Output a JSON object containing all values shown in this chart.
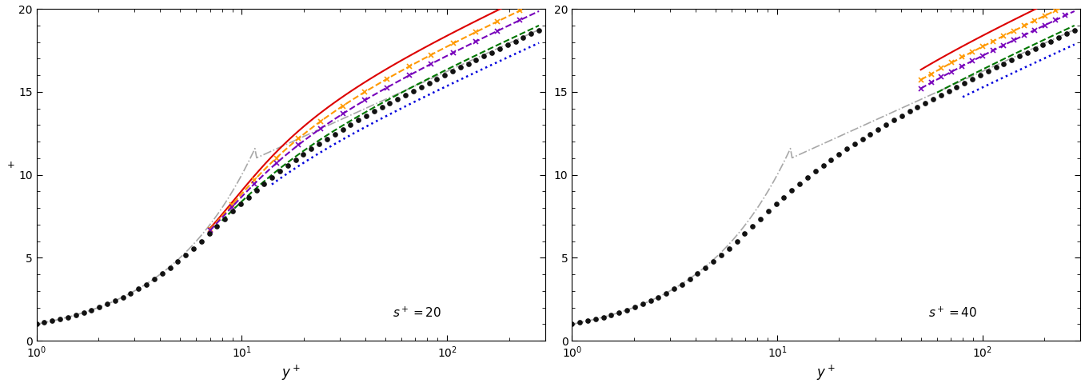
{
  "xlim": [
    1,
    300
  ],
  "ylim": [
    0,
    20
  ],
  "colors": {
    "black_dots": "#111111",
    "gray_dashdot": "#999999",
    "red": "#dd0000",
    "orange": "#ff9900",
    "purple": "#7700bb",
    "green": "#007700",
    "blue": "#0000dd"
  },
  "kappa": 0.41,
  "B_smooth": 5.0,
  "panel_labels": [
    "$s^+ = 20$",
    "$s^+ = 40$"
  ],
  "s20": {
    "B_shifts": [
      2.5,
      1.8,
      1.2,
      0.3,
      -0.8
    ],
    "y_starts": [
      7,
      7,
      7,
      8,
      14
    ]
  },
  "s40": {
    "B_shifts": [
      2.5,
      1.8,
      1.2,
      0.3,
      -0.9
    ],
    "y_starts": [
      50,
      50,
      50,
      60,
      80
    ]
  }
}
